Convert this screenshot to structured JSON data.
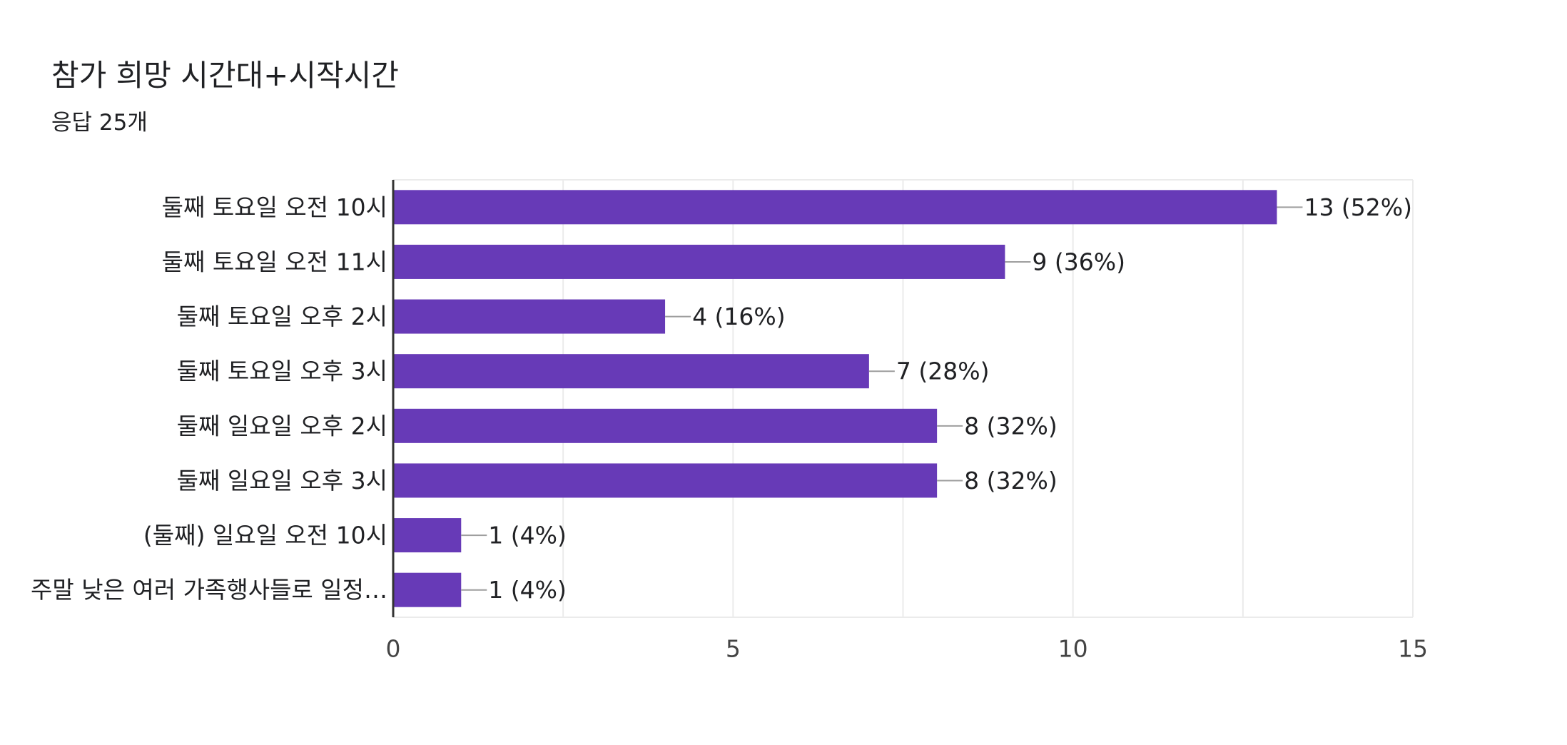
{
  "header": {
    "title": "참가 희망 시간대+시작시간",
    "subtitle": "응답 25개"
  },
  "colors": {
    "bar": "#673ab7",
    "grid": "#ebebeb",
    "axis": "#333333",
    "connector": "#9e9e9e"
  },
  "chart_data": {
    "type": "bar",
    "orientation": "horizontal",
    "title": "참가 희망 시간대+시작시간",
    "subtitle": "응답 25개",
    "categories": [
      "둘째 토요일 오전 10시",
      "둘째 토요일 오전 11시",
      "둘째 토요일 오후 2시",
      "둘째 토요일 오후 3시",
      "둘째 일요일 오후 2시",
      "둘째 일요일 오후 3시",
      "(둘째) 일요일 오전 10시",
      "주말 낮은 여러 가족행사들로 일정…"
    ],
    "values": [
      13,
      9,
      4,
      7,
      8,
      8,
      1,
      1
    ],
    "value_labels": [
      "13 (52%)",
      "9 (36%)",
      "4 (16%)",
      "7 (28%)",
      "8 (32%)",
      "8 (32%)",
      "1 (4%)",
      "1 (4%)"
    ],
    "xlim": [
      0,
      15
    ],
    "xticks": [
      "0",
      "5",
      "10",
      "15"
    ],
    "grid": true,
    "legend": "none"
  }
}
